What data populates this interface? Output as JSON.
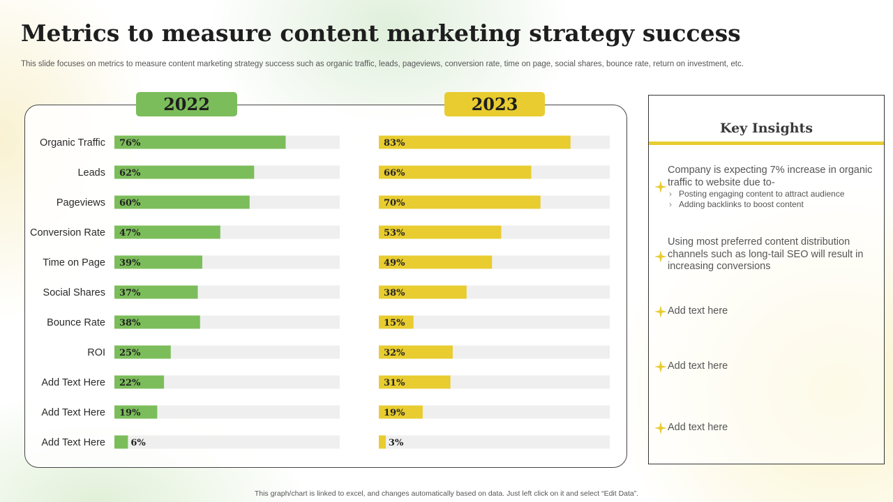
{
  "title": "Metrics to measure content marketing strategy success",
  "subtitle": "This slide focuses on metrics to measure content marketing strategy success such as organic traffic, leads, pageviews, conversion rate, time on page, social shares, bounce rate, return on investment, etc.",
  "colors": {
    "green": "#7cbd5b",
    "yellow": "#e8cc30",
    "track": "#efefef",
    "text": "#1e1e1e"
  },
  "chart_data": {
    "type": "bar",
    "orientation": "horizontal",
    "categories": [
      "Organic Traffic",
      "Leads",
      "Pageviews",
      "Conversion Rate",
      "Time on Page",
      "Social Shares",
      "Bounce Rate",
      "ROI",
      "Add Text Here",
      "Add Text Here",
      "Add Text Here"
    ],
    "series": [
      {
        "name": "2022",
        "values": [
          76,
          62,
          60,
          47,
          39,
          37,
          38,
          25,
          22,
          19,
          6
        ],
        "labels": [
          "76%",
          "62%",
          "60%",
          "47%",
          "39%",
          "37%",
          "38%",
          "25%",
          "22%",
          "19%",
          "6%"
        ],
        "color": "#7cbd5b"
      },
      {
        "name": "2023",
        "values": [
          83,
          66,
          70,
          53,
          49,
          38,
          15,
          32,
          31,
          19,
          3
        ],
        "labels": [
          "83%",
          "66%",
          "70%",
          "53%",
          "49%",
          "38%",
          "15%",
          "32%",
          "31%",
          "19%",
          "3%"
        ],
        "color": "#e8cc30"
      }
    ],
    "xlim": [
      0,
      100
    ],
    "unit": "%"
  },
  "insights": {
    "title": "Key Insights",
    "items": [
      {
        "text": "Company is expecting 7% increase in organic traffic to website due to-",
        "bullets": [
          "Posting engaging content to attract audience",
          "Adding backlinks to boost content"
        ]
      },
      {
        "text": "Using most preferred content distribution channels such as long-tail SEO will result in increasing conversions",
        "bullets": []
      },
      {
        "text": "Add text here",
        "bullets": []
      },
      {
        "text": "Add text here",
        "bullets": []
      },
      {
        "text": "Add text here",
        "bullets": []
      }
    ]
  },
  "footer": "This graph/chart is linked to excel, and changes automatically based on data. Just left click on it and select “Edit Data”."
}
